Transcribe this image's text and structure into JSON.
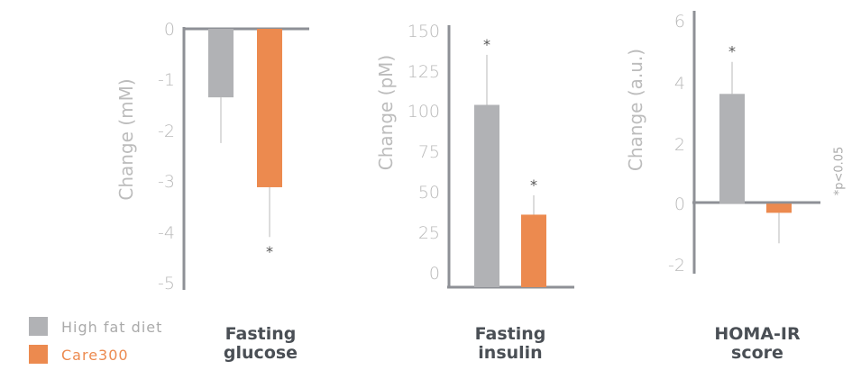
{
  "colors": {
    "high_fat_diet": "#b1b2b5",
    "care300": "#ec8a4f",
    "axis": "#8e9096",
    "error": "#dcdcdc"
  },
  "legend": [
    {
      "label": "High fat diet",
      "color": "#b1b2b5"
    },
    {
      "label": "Care300",
      "color": "#ec8a4f"
    }
  ],
  "footnote": "*p<0.05",
  "chart_data": [
    {
      "type": "bar",
      "title_lines": [
        "Fasting",
        "glucose"
      ],
      "ylabel": "Change (mM)",
      "ylim": [
        -5,
        0
      ],
      "yticks": [
        "0",
        "-1",
        "-2",
        "-3",
        "-4",
        "-5"
      ],
      "series": [
        {
          "name": "High fat diet",
          "value": -1.35,
          "error_end": -2.25,
          "significant": false
        },
        {
          "name": "Care300",
          "value": -3.12,
          "error_end": -4.1,
          "significant": true
        }
      ]
    },
    {
      "type": "bar",
      "title_lines": [
        "Fasting",
        "insulin"
      ],
      "ylabel": "Change (pM)",
      "ylim": [
        0,
        150
      ],
      "yticks": [
        "150",
        "125",
        "100",
        "75",
        "50",
        "25",
        "0"
      ],
      "series": [
        {
          "name": "High fat diet",
          "value": 104,
          "error_end": 135,
          "significant": true
        },
        {
          "name": "Care300",
          "value": 36,
          "error_end": 48,
          "significant": true
        }
      ]
    },
    {
      "type": "bar",
      "title_lines": [
        "HOMA-IR",
        "score"
      ],
      "ylabel": "Change (a.u.)",
      "ylim": [
        -2,
        6
      ],
      "yticks": [
        "6",
        "4",
        "2",
        "0",
        "-2"
      ],
      "series": [
        {
          "name": "High fat diet",
          "value": 3.6,
          "error_end": 4.65,
          "significant": true
        },
        {
          "name": "Care300",
          "value": -0.3,
          "error_end": -1.3,
          "significant": false
        }
      ]
    }
  ]
}
